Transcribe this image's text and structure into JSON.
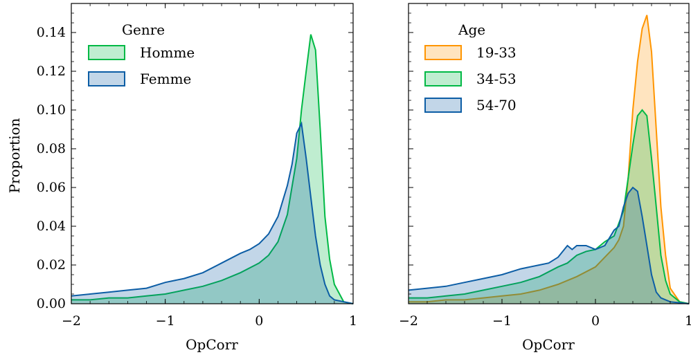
{
  "chart_data": [
    {
      "type": "area",
      "xlabel": "OpCorr",
      "ylabel": "Proportion",
      "xlim": [
        -2,
        1
      ],
      "ylim": [
        0,
        0.155
      ],
      "x_ticks": [
        -2,
        -1,
        0,
        1
      ],
      "x_tick_labels": [
        "−2",
        "−1",
        "0",
        "1"
      ],
      "y_ticks": [
        0,
        0.02,
        0.04,
        0.06,
        0.08,
        0.1,
        0.12,
        0.14
      ],
      "y_tick_labels": [
        "0.00",
        "0.02",
        "0.04",
        "0.06",
        "0.08",
        "0.10",
        "0.12",
        "0.14"
      ],
      "legend": {
        "title": "Genre",
        "placement": "top-left"
      },
      "series": [
        {
          "name": "Homme",
          "color": "#00b945",
          "x": [
            -2,
            -1.8,
            -1.6,
            -1.4,
            -1.2,
            -1.0,
            -0.8,
            -0.6,
            -0.4,
            -0.2,
            0.0,
            0.1,
            0.2,
            0.3,
            0.4,
            0.45,
            0.5,
            0.55,
            0.6,
            0.65,
            0.7,
            0.75,
            0.8,
            0.9,
            1.0
          ],
          "y": [
            0.002,
            0.002,
            0.003,
            0.003,
            0.004,
            0.005,
            0.007,
            0.009,
            0.012,
            0.016,
            0.021,
            0.025,
            0.032,
            0.046,
            0.075,
            0.1,
            0.12,
            0.139,
            0.131,
            0.09,
            0.045,
            0.023,
            0.01,
            0.001,
            0.0
          ]
        },
        {
          "name": "Femme",
          "color": "#0c5da5",
          "x": [
            -2,
            -1.8,
            -1.6,
            -1.4,
            -1.2,
            -1.0,
            -0.8,
            -0.6,
            -0.4,
            -0.2,
            -0.1,
            0.0,
            0.1,
            0.2,
            0.3,
            0.35,
            0.4,
            0.45,
            0.5,
            0.55,
            0.6,
            0.65,
            0.7,
            0.75,
            0.8,
            0.9,
            1.0
          ],
          "y": [
            0.004,
            0.005,
            0.006,
            0.007,
            0.008,
            0.011,
            0.013,
            0.016,
            0.021,
            0.026,
            0.028,
            0.031,
            0.036,
            0.045,
            0.061,
            0.072,
            0.088,
            0.093,
            0.075,
            0.055,
            0.035,
            0.02,
            0.01,
            0.004,
            0.002,
            0.001,
            0.0
          ]
        }
      ]
    },
    {
      "type": "area",
      "xlabel": "OpCorr",
      "ylabel": "",
      "xlim": [
        -2,
        1
      ],
      "ylim": [
        0,
        0.155
      ],
      "x_ticks": [
        -2,
        -1,
        0,
        1
      ],
      "x_tick_labels": [
        "−2",
        "−1",
        "0",
        "1"
      ],
      "legend": {
        "title": "Age",
        "placement": "top-left"
      },
      "series": [
        {
          "name": "19-33",
          "color": "#ff9500",
          "x": [
            -2,
            -1.8,
            -1.6,
            -1.4,
            -1.2,
            -1.0,
            -0.8,
            -0.6,
            -0.4,
            -0.2,
            0.0,
            0.1,
            0.2,
            0.25,
            0.3,
            0.35,
            0.4,
            0.45,
            0.5,
            0.55,
            0.6,
            0.65,
            0.7,
            0.75,
            0.8,
            0.9,
            1.0
          ],
          "y": [
            0.001,
            0.001,
            0.002,
            0.002,
            0.003,
            0.004,
            0.005,
            0.007,
            0.01,
            0.014,
            0.019,
            0.024,
            0.029,
            0.033,
            0.04,
            0.065,
            0.1,
            0.125,
            0.142,
            0.149,
            0.13,
            0.09,
            0.05,
            0.025,
            0.008,
            0.001,
            0.0
          ]
        },
        {
          "name": "34-53",
          "color": "#00b945",
          "x": [
            -2,
            -1.8,
            -1.6,
            -1.4,
            -1.2,
            -1.0,
            -0.8,
            -0.6,
            -0.4,
            -0.3,
            -0.2,
            -0.1,
            0.0,
            0.1,
            0.2,
            0.3,
            0.35,
            0.4,
            0.45,
            0.5,
            0.55,
            0.6,
            0.65,
            0.7,
            0.75,
            0.8,
            0.9,
            1.0
          ],
          "y": [
            0.003,
            0.003,
            0.004,
            0.005,
            0.007,
            0.009,
            0.011,
            0.014,
            0.019,
            0.021,
            0.025,
            0.027,
            0.028,
            0.032,
            0.035,
            0.048,
            0.065,
            0.082,
            0.097,
            0.1,
            0.097,
            0.075,
            0.05,
            0.025,
            0.012,
            0.005,
            0.001,
            0.0
          ]
        },
        {
          "name": "54-70",
          "color": "#0c5da5",
          "x": [
            -2,
            -1.8,
            -1.6,
            -1.4,
            -1.2,
            -1.0,
            -0.8,
            -0.6,
            -0.5,
            -0.4,
            -0.3,
            -0.25,
            -0.2,
            -0.15,
            -0.1,
            0.0,
            0.1,
            0.2,
            0.25,
            0.3,
            0.35,
            0.4,
            0.45,
            0.5,
            0.55,
            0.6,
            0.65,
            0.7,
            0.75,
            0.8,
            0.9,
            1.0
          ],
          "y": [
            0.007,
            0.008,
            0.009,
            0.011,
            0.013,
            0.015,
            0.018,
            0.02,
            0.021,
            0.024,
            0.03,
            0.028,
            0.03,
            0.03,
            0.03,
            0.028,
            0.03,
            0.038,
            0.04,
            0.05,
            0.057,
            0.06,
            0.058,
            0.045,
            0.03,
            0.015,
            0.006,
            0.003,
            0.002,
            0.001,
            0.0005,
            0.0
          ]
        }
      ]
    }
  ]
}
